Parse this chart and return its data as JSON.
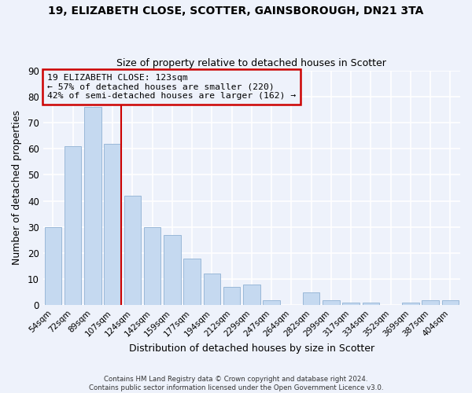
{
  "title": "19, ELIZABETH CLOSE, SCOTTER, GAINSBOROUGH, DN21 3TA",
  "subtitle": "Size of property relative to detached houses in Scotter",
  "xlabel": "Distribution of detached houses by size in Scotter",
  "ylabel": "Number of detached properties",
  "bar_labels": [
    "54sqm",
    "72sqm",
    "89sqm",
    "107sqm",
    "124sqm",
    "142sqm",
    "159sqm",
    "177sqm",
    "194sqm",
    "212sqm",
    "229sqm",
    "247sqm",
    "264sqm",
    "282sqm",
    "299sqm",
    "317sqm",
    "334sqm",
    "352sqm",
    "369sqm",
    "387sqm",
    "404sqm"
  ],
  "bar_values": [
    30,
    61,
    76,
    62,
    42,
    30,
    27,
    18,
    12,
    7,
    8,
    2,
    0,
    5,
    2,
    1,
    1,
    0,
    1,
    2,
    2
  ],
  "bar_color": "#c5d9f0",
  "bar_edgecolor": "#9ab8d8",
  "ylim": [
    0,
    90
  ],
  "yticks": [
    0,
    10,
    20,
    30,
    40,
    50,
    60,
    70,
    80,
    90
  ],
  "vline_color": "#cc0000",
  "annotation_line1": "19 ELIZABETH CLOSE: 123sqm",
  "annotation_line2": "← 57% of detached houses are smaller (220)",
  "annotation_line3": "42% of semi-detached houses are larger (162) →",
  "annotation_box_edgecolor": "#cc0000",
  "footer_line1": "Contains HM Land Registry data © Crown copyright and database right 2024.",
  "footer_line2": "Contains public sector information licensed under the Open Government Licence v3.0.",
  "background_color": "#eef2fb",
  "grid_color": "#ffffff"
}
